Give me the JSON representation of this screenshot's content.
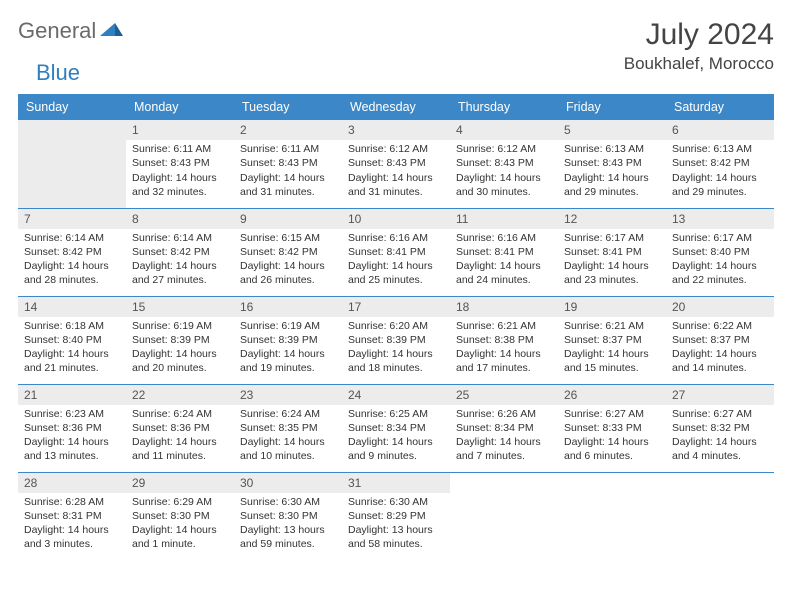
{
  "logo": {
    "word1": "General",
    "word2": "Blue"
  },
  "title": "July 2024",
  "location": "Boukhalef, Morocco",
  "day_headers": [
    "Sunday",
    "Monday",
    "Tuesday",
    "Wednesday",
    "Thursday",
    "Friday",
    "Saturday"
  ],
  "colors": {
    "header_bg": "#3b87c8",
    "header_text": "#ffffff",
    "daynum_bg": "#ececec",
    "border": "#3b87c8",
    "logo_gray": "#6a6a6a",
    "logo_blue": "#2f7fc1",
    "title_color": "#444444"
  },
  "grid": [
    [
      null,
      {
        "n": "1",
        "sr": "6:11 AM",
        "ss": "8:43 PM",
        "dl": "14 hours and 32 minutes."
      },
      {
        "n": "2",
        "sr": "6:11 AM",
        "ss": "8:43 PM",
        "dl": "14 hours and 31 minutes."
      },
      {
        "n": "3",
        "sr": "6:12 AM",
        "ss": "8:43 PM",
        "dl": "14 hours and 31 minutes."
      },
      {
        "n": "4",
        "sr": "6:12 AM",
        "ss": "8:43 PM",
        "dl": "14 hours and 30 minutes."
      },
      {
        "n": "5",
        "sr": "6:13 AM",
        "ss": "8:43 PM",
        "dl": "14 hours and 29 minutes."
      },
      {
        "n": "6",
        "sr": "6:13 AM",
        "ss": "8:42 PM",
        "dl": "14 hours and 29 minutes."
      }
    ],
    [
      {
        "n": "7",
        "sr": "6:14 AM",
        "ss": "8:42 PM",
        "dl": "14 hours and 28 minutes."
      },
      {
        "n": "8",
        "sr": "6:14 AM",
        "ss": "8:42 PM",
        "dl": "14 hours and 27 minutes."
      },
      {
        "n": "9",
        "sr": "6:15 AM",
        "ss": "8:42 PM",
        "dl": "14 hours and 26 minutes."
      },
      {
        "n": "10",
        "sr": "6:16 AM",
        "ss": "8:41 PM",
        "dl": "14 hours and 25 minutes."
      },
      {
        "n": "11",
        "sr": "6:16 AM",
        "ss": "8:41 PM",
        "dl": "14 hours and 24 minutes."
      },
      {
        "n": "12",
        "sr": "6:17 AM",
        "ss": "8:41 PM",
        "dl": "14 hours and 23 minutes."
      },
      {
        "n": "13",
        "sr": "6:17 AM",
        "ss": "8:40 PM",
        "dl": "14 hours and 22 minutes."
      }
    ],
    [
      {
        "n": "14",
        "sr": "6:18 AM",
        "ss": "8:40 PM",
        "dl": "14 hours and 21 minutes."
      },
      {
        "n": "15",
        "sr": "6:19 AM",
        "ss": "8:39 PM",
        "dl": "14 hours and 20 minutes."
      },
      {
        "n": "16",
        "sr": "6:19 AM",
        "ss": "8:39 PM",
        "dl": "14 hours and 19 minutes."
      },
      {
        "n": "17",
        "sr": "6:20 AM",
        "ss": "8:39 PM",
        "dl": "14 hours and 18 minutes."
      },
      {
        "n": "18",
        "sr": "6:21 AM",
        "ss": "8:38 PM",
        "dl": "14 hours and 17 minutes."
      },
      {
        "n": "19",
        "sr": "6:21 AM",
        "ss": "8:37 PM",
        "dl": "14 hours and 15 minutes."
      },
      {
        "n": "20",
        "sr": "6:22 AM",
        "ss": "8:37 PM",
        "dl": "14 hours and 14 minutes."
      }
    ],
    [
      {
        "n": "21",
        "sr": "6:23 AM",
        "ss": "8:36 PM",
        "dl": "14 hours and 13 minutes."
      },
      {
        "n": "22",
        "sr": "6:24 AM",
        "ss": "8:36 PM",
        "dl": "14 hours and 11 minutes."
      },
      {
        "n": "23",
        "sr": "6:24 AM",
        "ss": "8:35 PM",
        "dl": "14 hours and 10 minutes."
      },
      {
        "n": "24",
        "sr": "6:25 AM",
        "ss": "8:34 PM",
        "dl": "14 hours and 9 minutes."
      },
      {
        "n": "25",
        "sr": "6:26 AM",
        "ss": "8:34 PM",
        "dl": "14 hours and 7 minutes."
      },
      {
        "n": "26",
        "sr": "6:27 AM",
        "ss": "8:33 PM",
        "dl": "14 hours and 6 minutes."
      },
      {
        "n": "27",
        "sr": "6:27 AM",
        "ss": "8:32 PM",
        "dl": "14 hours and 4 minutes."
      }
    ],
    [
      {
        "n": "28",
        "sr": "6:28 AM",
        "ss": "8:31 PM",
        "dl": "14 hours and 3 minutes."
      },
      {
        "n": "29",
        "sr": "6:29 AM",
        "ss": "8:30 PM",
        "dl": "14 hours and 1 minute."
      },
      {
        "n": "30",
        "sr": "6:30 AM",
        "ss": "8:30 PM",
        "dl": "13 hours and 59 minutes."
      },
      {
        "n": "31",
        "sr": "6:30 AM",
        "ss": "8:29 PM",
        "dl": "13 hours and 58 minutes."
      },
      null,
      null,
      null
    ]
  ],
  "labels": {
    "sunrise": "Sunrise:",
    "sunset": "Sunset:",
    "daylight": "Daylight:"
  }
}
